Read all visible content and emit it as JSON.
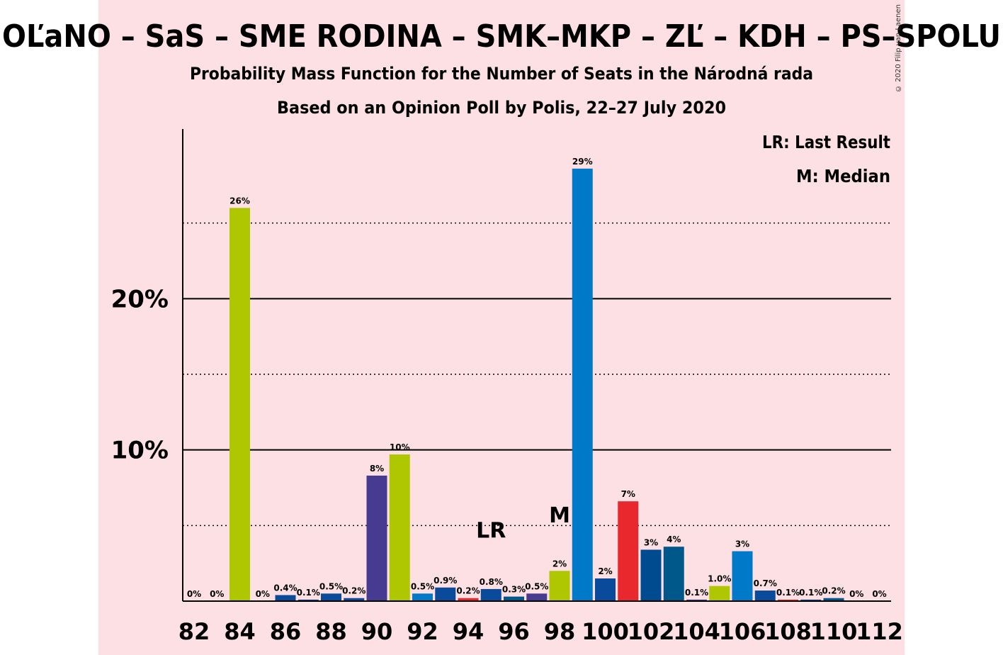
{
  "title": "OĽaNO – SaS – SME RODINA – SMK–MKP – ZĽ – KDH – PS–SPOLU",
  "subtitle": "Probability Mass Function for the Number of Seats in the Národná rada",
  "subtitle2": "Based on an Opinion Poll by Polis, 22–27 July 2020",
  "legend": {
    "lr": "LR: Last Result",
    "m": "M: Median"
  },
  "copyright": "© 2020 Filip van Laenen",
  "colors": {
    "background": "#fde0e3",
    "lime": "#afc700",
    "navy": "#0a4a9a",
    "purple": "#463a91",
    "blue": "#0079c8",
    "red": "#e8282c",
    "darkblue": "#004a8f",
    "teal": "#00588a"
  },
  "chart_data": {
    "type": "bar",
    "xlabel": "",
    "ylabel": "",
    "ylim": [
      0,
      31
    ],
    "yticks": [
      {
        "value": 10,
        "label": "10%"
      },
      {
        "value": 20,
        "label": "20%"
      }
    ],
    "dotted_gridlines": [
      5,
      15,
      25
    ],
    "x_tick_labels": [
      "82",
      "84",
      "86",
      "88",
      "90",
      "92",
      "94",
      "96",
      "98",
      "100",
      "102",
      "104",
      "106",
      "108",
      "110",
      "112"
    ],
    "bars": [
      {
        "x": 82,
        "value": 0,
        "label": "0%",
        "color": "#afc700"
      },
      {
        "x": 83,
        "value": 0,
        "label": "0%",
        "color": "#afc700"
      },
      {
        "x": 84,
        "value": 26.0,
        "label": "26%",
        "color": "#afc700"
      },
      {
        "x": 85,
        "value": 0,
        "label": "0%",
        "color": "#afc700"
      },
      {
        "x": 86,
        "value": 0.4,
        "label": "0.4%",
        "color": "#0a4a9a"
      },
      {
        "x": 87,
        "value": 0.1,
        "label": "0.1%",
        "color": "#0a4a9a"
      },
      {
        "x": 88,
        "value": 0.5,
        "label": "0.5%",
        "color": "#0a4a9a"
      },
      {
        "x": 89,
        "value": 0.2,
        "label": "0.2%",
        "color": "#0a4a9a"
      },
      {
        "x": 90,
        "value": 8.3,
        "label": "8%",
        "color": "#463a91"
      },
      {
        "x": 91,
        "value": 9.7,
        "label": "10%",
        "color": "#afc700"
      },
      {
        "x": 92,
        "value": 0.5,
        "label": "0.5%",
        "color": "#0079c8"
      },
      {
        "x": 93,
        "value": 0.9,
        "label": "0.9%",
        "color": "#0a4a9a"
      },
      {
        "x": 94,
        "value": 0.2,
        "label": "0.2%",
        "color": "#e8282c"
      },
      {
        "x": 95,
        "value": 0.8,
        "label": "0.8%",
        "color": "#0a4a9a"
      },
      {
        "x": 96,
        "value": 0.3,
        "label": "0.3%",
        "color": "#00588a"
      },
      {
        "x": 97,
        "value": 0.5,
        "label": "0.5%",
        "color": "#463a91"
      },
      {
        "x": 98,
        "value": 2.0,
        "label": "2%",
        "color": "#afc700"
      },
      {
        "x": 99,
        "value": 28.6,
        "label": "29%",
        "color": "#0079c8"
      },
      {
        "x": 100,
        "value": 1.5,
        "label": "2%",
        "color": "#0a4a9a"
      },
      {
        "x": 101,
        "value": 6.6,
        "label": "7%",
        "color": "#e8282c"
      },
      {
        "x": 102,
        "value": 3.4,
        "label": "3%",
        "color": "#004a8f"
      },
      {
        "x": 103,
        "value": 3.6,
        "label": "4%",
        "color": "#00588a"
      },
      {
        "x": 104,
        "value": 0.1,
        "label": "0.1%",
        "color": "#463a91"
      },
      {
        "x": 105,
        "value": 1.0,
        "label": "1.0%",
        "color": "#afc700"
      },
      {
        "x": 106,
        "value": 3.3,
        "label": "3%",
        "color": "#0079c8"
      },
      {
        "x": 107,
        "value": 0.7,
        "label": "0.7%",
        "color": "#0a4a9a"
      },
      {
        "x": 108,
        "value": 0.1,
        "label": "0.1%",
        "color": "#e8282c"
      },
      {
        "x": 109,
        "value": 0.1,
        "label": "0.1%",
        "color": "#004a8f"
      },
      {
        "x": 110,
        "value": 0.2,
        "label": "0.2%",
        "color": "#00588a"
      },
      {
        "x": 111,
        "value": 0,
        "label": "0%",
        "color": "#463a91"
      },
      {
        "x": 112,
        "value": 0,
        "label": "0%",
        "color": "#afc700"
      }
    ],
    "markers": [
      {
        "text": "LR",
        "x": 95,
        "value": 4.2
      },
      {
        "text": "M",
        "x": 98,
        "value": 5.2
      }
    ]
  }
}
